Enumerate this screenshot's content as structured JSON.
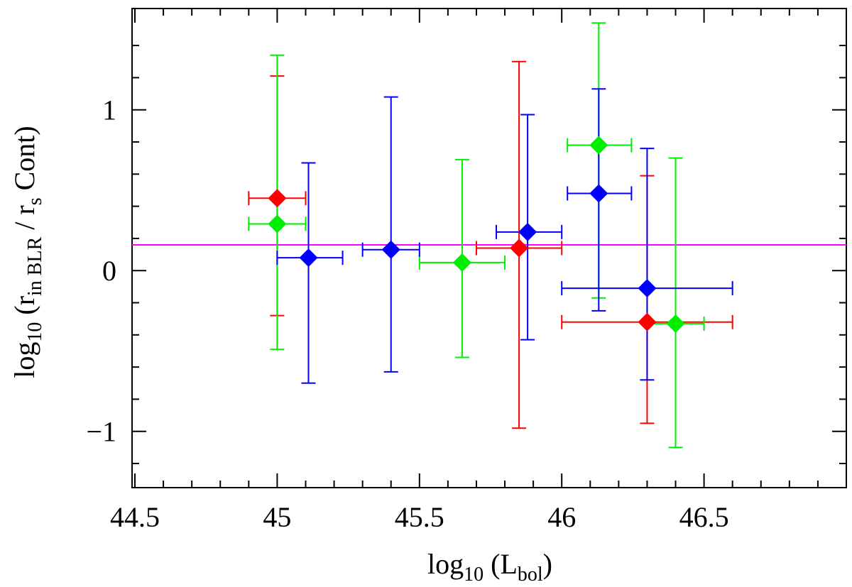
{
  "chart_data": {
    "type": "errorbar-scatter",
    "xlabel": [
      {
        "text": "log",
        "sub": "10"
      },
      {
        "text": " (L",
        "sub": "bol"
      },
      {
        "text": ")"
      }
    ],
    "ylabel": [
      {
        "text": "log",
        "sub": "10"
      },
      {
        "text": " (r",
        "sub": "in BLR"
      },
      {
        "text": " / r",
        "sub": "s"
      },
      {
        "text": " Cont)"
      }
    ],
    "xlim": [
      44.49,
      47.0
    ],
    "ylim": [
      -1.35,
      1.63
    ],
    "xticks": [
      44.5,
      45,
      45.5,
      46,
      46.5
    ],
    "yticks": [
      {
        "value": -1,
        "label": "−1"
      },
      0,
      1
    ],
    "xticks_minor": [
      44.6,
      44.7,
      44.8,
      44.9,
      45.1,
      45.2,
      45.3,
      45.4,
      45.6,
      45.7,
      45.8,
      45.9,
      46.1,
      46.2,
      46.3,
      46.4,
      46.6,
      46.7,
      46.8,
      46.9
    ],
    "yticks_minor": [
      -1.2,
      -0.8,
      -0.6,
      -0.4,
      -0.2,
      0.2,
      0.4,
      0.6,
      0.8,
      1.2,
      1.4
    ],
    "hline": {
      "y": 0.16,
      "color": "#ff00ff"
    },
    "series": [
      {
        "color": "#ff0000",
        "x": [
          45.0,
          45.85,
          46.3
        ],
        "y": [
          0.45,
          0.14,
          -0.32
        ],
        "x_lower": [
          44.9,
          45.7,
          46.0
        ],
        "x_upper": [
          45.1,
          46.0,
          46.6
        ],
        "y_lower": [
          -0.28,
          -0.98,
          -0.95
        ],
        "y_upper": [
          1.21,
          1.3,
          0.59
        ]
      },
      {
        "color": "#00ee00",
        "x": [
          45.0,
          45.65,
          46.13,
          46.4
        ],
        "y": [
          0.29,
          0.05,
          0.78,
          -0.33
        ],
        "x_lower": [
          44.9,
          45.5,
          46.02,
          46.3
        ],
        "x_upper": [
          45.1,
          45.8,
          46.245,
          46.5
        ],
        "y_lower": [
          -0.49,
          -0.54,
          -0.17,
          -1.1
        ],
        "y_upper": [
          1.34,
          0.69,
          1.54,
          0.7
        ]
      },
      {
        "color": "#0000ff",
        "x": [
          45.11,
          45.4,
          45.88,
          46.13,
          46.3
        ],
        "y": [
          0.08,
          0.13,
          0.24,
          0.48,
          -0.11
        ],
        "x_lower": [
          45.0,
          45.3,
          45.77,
          46.02,
          46.0
        ],
        "x_upper": [
          45.23,
          45.5,
          46.0,
          46.245,
          46.6
        ],
        "y_lower": [
          -0.7,
          -0.63,
          -0.43,
          -0.25,
          -0.68
        ],
        "y_upper": [
          0.67,
          1.08,
          0.97,
          1.13,
          0.76
        ]
      }
    ]
  }
}
